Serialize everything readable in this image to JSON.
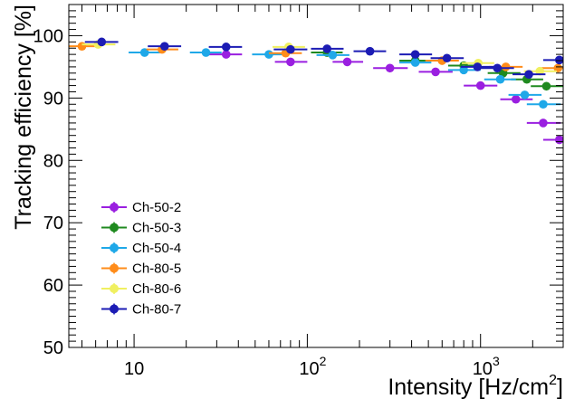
{
  "chart_data": {
    "type": "scatter",
    "xlabel_main": "Intensity [Hz/cm",
    "xlabel_sup": "2",
    "xlabel_end": "]",
    "ylabel": "Tracking efficiency [%]",
    "xscale": "log",
    "xlim": [
      4.2,
      3000
    ],
    "ylim": [
      50,
      105
    ],
    "y_ticks": [
      50,
      60,
      70,
      80,
      90,
      100
    ],
    "x_ticks": [
      {
        "value": 10,
        "base": "10",
        "exp": ""
      },
      {
        "value": 100,
        "base": "10",
        "exp": "2"
      },
      {
        "value": 1000,
        "base": "10",
        "exp": "3"
      }
    ],
    "legend_position": "lower-left",
    "series": [
      {
        "name": "Ch-50-2",
        "color": "#9a1fe0",
        "points": [
          {
            "x": 34,
            "y": 97.0,
            "xerr": [
              27,
              42
            ]
          },
          {
            "x": 80,
            "y": 95.8,
            "xerr": [
              65,
              100
            ]
          },
          {
            "x": 170,
            "y": 95.8,
            "xerr": [
              140,
              210
            ]
          },
          {
            "x": 300,
            "y": 94.8,
            "xerr": [
              240,
              380
            ]
          },
          {
            "x": 550,
            "y": 94.2,
            "xerr": [
              440,
              690
            ]
          },
          {
            "x": 1000,
            "y": 92.0,
            "xerr": [
              800,
              1250
            ]
          },
          {
            "x": 1600,
            "y": 89.8,
            "xerr": [
              1300,
              2000
            ]
          },
          {
            "x": 2300,
            "y": 86.0,
            "xerr": [
              1850,
              2900
            ]
          },
          {
            "x": 2850,
            "y": 83.3,
            "xerr": [
              2300,
              3000
            ]
          }
        ]
      },
      {
        "name": "Ch-50-3",
        "color": "#1f8a1f",
        "points": [
          {
            "x": 130,
            "y": 97.3,
            "xerr": [
              105,
              160
            ]
          },
          {
            "x": 420,
            "y": 96.0,
            "xerr": [
              340,
              520
            ]
          },
          {
            "x": 800,
            "y": 95.2,
            "xerr": [
              650,
              1000
            ]
          },
          {
            "x": 1350,
            "y": 94.0,
            "xerr": [
              1100,
              1700
            ]
          },
          {
            "x": 1850,
            "y": 93.0,
            "xerr": [
              1500,
              2300
            ]
          },
          {
            "x": 2400,
            "y": 91.9,
            "xerr": [
              1950,
              3000
            ]
          }
        ]
      },
      {
        "name": "Ch-50-4",
        "color": "#1fa8e8",
        "points": [
          {
            "x": 11.5,
            "y": 97.3,
            "xerr": [
              9.3,
              14.3
            ]
          },
          {
            "x": 26,
            "y": 97.3,
            "xerr": [
              21,
              32
            ]
          },
          {
            "x": 60,
            "y": 97.0,
            "xerr": [
              48,
              75
            ]
          },
          {
            "x": 140,
            "y": 96.9,
            "xerr": [
              113,
              175
            ]
          },
          {
            "x": 420,
            "y": 95.7,
            "xerr": [
              340,
              520
            ]
          },
          {
            "x": 800,
            "y": 94.5,
            "xerr": [
              650,
              1000
            ]
          },
          {
            "x": 1300,
            "y": 93.0,
            "xerr": [
              1050,
              1600
            ]
          },
          {
            "x": 1800,
            "y": 90.5,
            "xerr": [
              1450,
              2250
            ]
          },
          {
            "x": 2300,
            "y": 89.0,
            "xerr": [
              1850,
              2900
            ]
          }
        ]
      },
      {
        "name": "Ch-80-5",
        "color": "#ff8c1a",
        "points": [
          {
            "x": 5,
            "y": 98.3,
            "xerr": [
              4.2,
              6.3
            ]
          },
          {
            "x": 14.5,
            "y": 97.8,
            "xerr": [
              11.8,
              18
            ]
          },
          {
            "x": 75,
            "y": 97.2,
            "xerr": [
              60,
              93
            ]
          },
          {
            "x": 600,
            "y": 96.0,
            "xerr": [
              480,
              750
            ]
          },
          {
            "x": 1400,
            "y": 95.0,
            "xerr": [
              1120,
              1750
            ]
          },
          {
            "x": 2800,
            "y": 94.8,
            "xerr": [
              2250,
              3000
            ]
          }
        ]
      },
      {
        "name": "Ch-80-6",
        "color": "#f0f060",
        "points": [
          {
            "x": 6.2,
            "y": 98.6,
            "xerr": [
              5,
              7.8
            ]
          },
          {
            "x": 78,
            "y": 98.2,
            "xerr": [
              63,
              97
            ]
          },
          {
            "x": 970,
            "y": 95.6,
            "xerr": [
              780,
              1200
            ]
          },
          {
            "x": 2200,
            "y": 94.3,
            "xerr": [
              1780,
              2750
            ]
          }
        ]
      },
      {
        "name": "Ch-80-7",
        "color": "#1c1cb4",
        "points": [
          {
            "x": 6.5,
            "y": 99.0,
            "xerr": [
              5.2,
              8.1
            ]
          },
          {
            "x": 15,
            "y": 98.3,
            "xerr": [
              12,
              18.7
            ]
          },
          {
            "x": 34,
            "y": 98.2,
            "xerr": [
              27,
              42
            ]
          },
          {
            "x": 80,
            "y": 97.8,
            "xerr": [
              64,
              100
            ]
          },
          {
            "x": 130,
            "y": 97.9,
            "xerr": [
              105,
              162
            ]
          },
          {
            "x": 230,
            "y": 97.5,
            "xerr": [
              185,
              285
            ]
          },
          {
            "x": 420,
            "y": 97.0,
            "xerr": [
              340,
              525
            ]
          },
          {
            "x": 640,
            "y": 96.4,
            "xerr": [
              515,
              800
            ]
          },
          {
            "x": 960,
            "y": 95.0,
            "xerr": [
              770,
              1200
            ]
          },
          {
            "x": 1250,
            "y": 94.8,
            "xerr": [
              1000,
              1560
            ]
          },
          {
            "x": 1900,
            "y": 93.8,
            "xerr": [
              1530,
              2370
            ]
          },
          {
            "x": 2850,
            "y": 96.1,
            "xerr": [
              2300,
              3000
            ]
          }
        ]
      }
    ]
  }
}
